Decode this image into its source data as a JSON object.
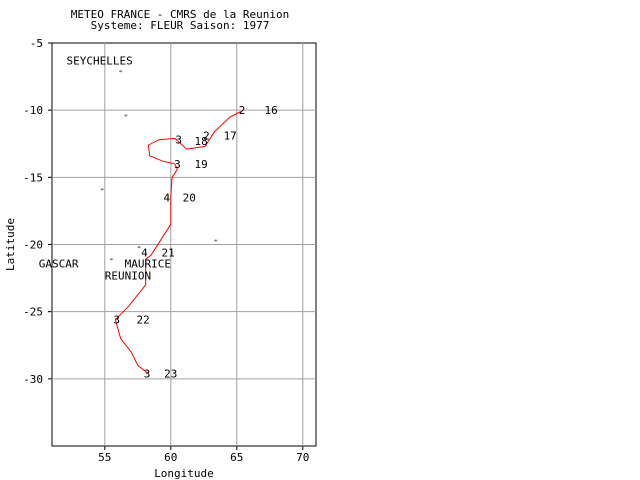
{
  "header": {
    "title_line1": "METEO FRANCE - CMRS de la Reunion",
    "title_line2": "Systeme: FLEUR  Saison: 1977"
  },
  "axes": {
    "xlabel": "Longitude",
    "ylabel": "Latitude",
    "xlim": [
      51,
      71
    ],
    "ylim": [
      -35,
      -5
    ],
    "xticks": [
      55,
      60,
      65,
      70
    ],
    "yticks": [
      -5,
      -10,
      -15,
      -20,
      -25,
      -30
    ],
    "grid": true
  },
  "place_labels": [
    {
      "text": "SEYCHELLES",
      "lon": 52.1,
      "lat": -6.3
    },
    {
      "text": "MAURICE",
      "lon": 56.5,
      "lat": -21.4
    },
    {
      "text": "REUNION",
      "lon": 55.0,
      "lat": -22.3
    },
    {
      "text": "GASCAR",
      "lon": 50.0,
      "lat": -21.4
    }
  ],
  "islands": [
    {
      "lon": 56.2,
      "lat": -7.1
    },
    {
      "lon": 56.6,
      "lat": -10.4
    },
    {
      "lon": 54.8,
      "lat": -15.9
    },
    {
      "lon": 63.4,
      "lat": -19.7
    },
    {
      "lon": 57.6,
      "lat": -20.2
    },
    {
      "lon": 55.5,
      "lat": -21.1
    }
  ],
  "track": {
    "color": "#ff0000",
    "points": [
      [
        65.3,
        -10.1
      ],
      [
        64.5,
        -10.5
      ],
      [
        63.3,
        -11.6
      ],
      [
        62.6,
        -12.7
      ],
      [
        61.2,
        -12.9
      ],
      [
        60.3,
        -12.1
      ],
      [
        59.1,
        -12.2
      ],
      [
        58.3,
        -12.6
      ],
      [
        58.4,
        -13.4
      ],
      [
        59.4,
        -13.8
      ],
      [
        60.3,
        -14.0
      ],
      [
        60.5,
        -14.4
      ],
      [
        60.1,
        -15.0
      ],
      [
        60.0,
        -16.5
      ],
      [
        60.0,
        -18.5
      ],
      [
        58.5,
        -20.8
      ],
      [
        58.1,
        -21.1
      ],
      [
        58.1,
        -23.0
      ],
      [
        56.8,
        -24.6
      ],
      [
        55.8,
        -25.6
      ],
      [
        56.2,
        -27.0
      ],
      [
        57.0,
        -28.0
      ],
      [
        57.5,
        -29.0
      ],
      [
        58.3,
        -29.6
      ]
    ]
  },
  "fix_labels": [
    {
      "text": "2",
      "lon": 65.4,
      "lat": -10.0
    },
    {
      "text": "16",
      "lon": 67.6,
      "lat": -10.0
    },
    {
      "text": "2",
      "lon": 62.7,
      "lat": -11.9
    },
    {
      "text": "17",
      "lon": 64.5,
      "lat": -11.9
    },
    {
      "text": "3",
      "lon": 60.6,
      "lat": -12.2
    },
    {
      "text": "18",
      "lon": 62.3,
      "lat": -12.3
    },
    {
      "text": "3",
      "lon": 60.5,
      "lat": -14.0
    },
    {
      "text": "19",
      "lon": 62.3,
      "lat": -14.0
    },
    {
      "text": "4",
      "lon": 59.7,
      "lat": -16.5
    },
    {
      "text": "20",
      "lon": 61.4,
      "lat": -16.5
    },
    {
      "text": "4",
      "lon": 58.0,
      "lat": -20.6
    },
    {
      "text": "21",
      "lon": 59.8,
      "lat": -20.6
    },
    {
      "text": "3",
      "lon": 55.9,
      "lat": -25.6
    },
    {
      "text": "22",
      "lon": 57.9,
      "lat": -25.6
    },
    {
      "text": "3",
      "lon": 58.2,
      "lat": -29.6
    },
    {
      "text": "23",
      "lon": 60.0,
      "lat": -29.6
    }
  ]
}
